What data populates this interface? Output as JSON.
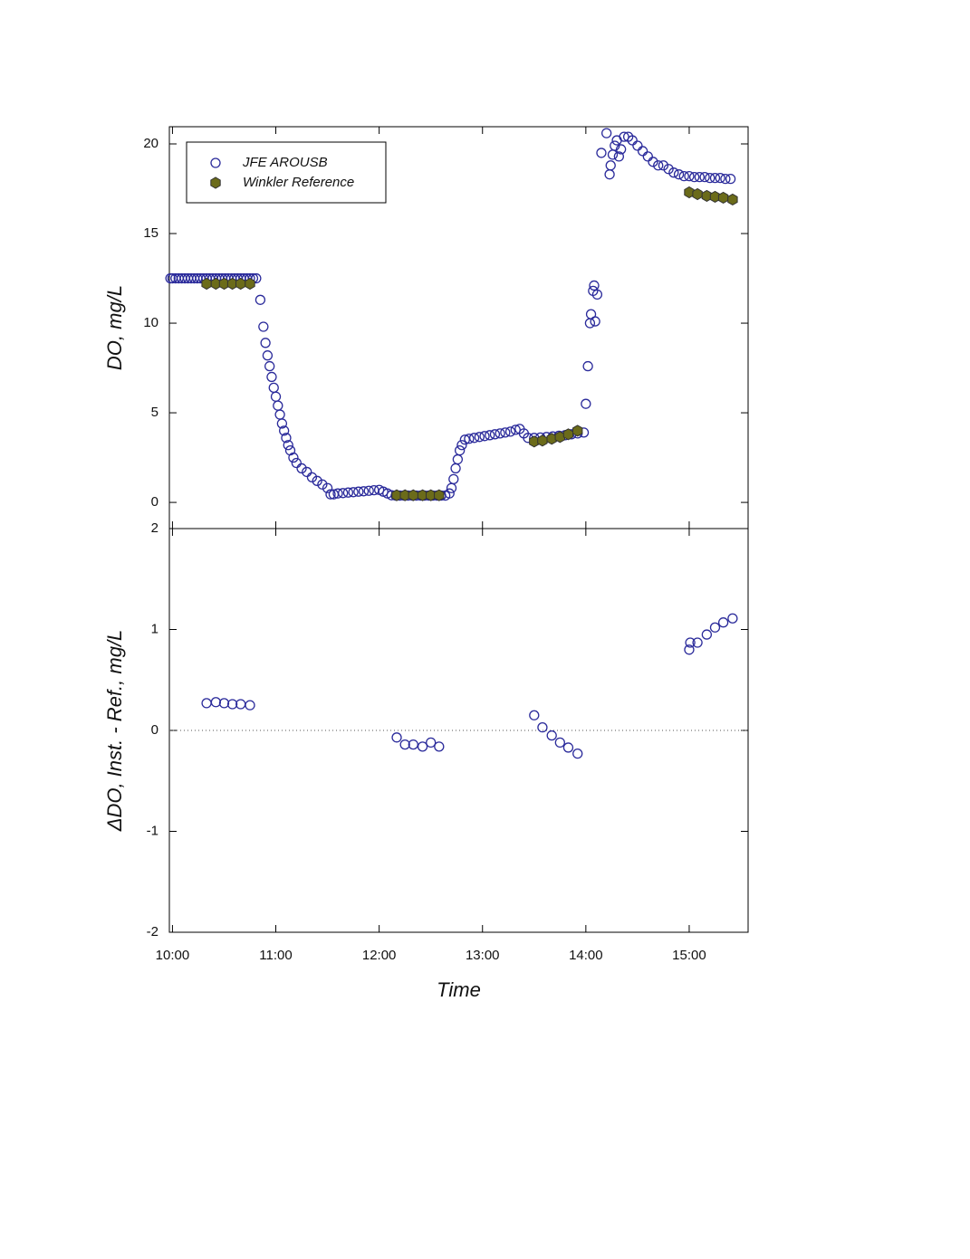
{
  "chart_data": [
    {
      "type": "scatter",
      "ylabel": "DO, mg/L",
      "legend": "upper left",
      "xlim": [
        9.97,
        15.57
      ],
      "xticks": [
        10,
        11,
        12,
        13,
        14,
        15
      ],
      "ylim": [
        -1.46,
        20.96
      ],
      "yticks": [
        0,
        5,
        10,
        15,
        20
      ],
      "series": [
        {
          "name": "JFE AROUSB",
          "color": "#2b2b9b",
          "marker": "circle",
          "x": [
            9.98,
            10.0,
            10.03,
            10.06,
            10.09,
            10.12,
            10.15,
            10.18,
            10.21,
            10.24,
            10.27,
            10.3,
            10.33,
            10.36,
            10.39,
            10.42,
            10.45,
            10.48,
            10.51,
            10.54,
            10.57,
            10.6,
            10.63,
            10.66,
            10.69,
            10.72,
            10.75,
            10.78,
            10.81,
            10.85,
            10.88,
            10.9,
            10.92,
            10.94,
            10.96,
            10.98,
            11.0,
            11.02,
            11.04,
            11.06,
            11.08,
            11.1,
            11.12,
            11.14,
            11.17,
            11.2,
            11.25,
            11.3,
            11.35,
            11.4,
            11.45,
            11.5,
            11.53,
            11.56,
            11.6,
            11.65,
            11.7,
            11.75,
            11.8,
            11.85,
            11.9,
            11.95,
            12.0,
            12.04,
            12.08,
            12.12,
            12.16,
            12.2,
            12.24,
            12.28,
            12.32,
            12.36,
            12.4,
            12.44,
            12.48,
            12.52,
            12.56,
            12.6,
            12.64,
            12.68,
            12.7,
            12.72,
            12.74,
            12.76,
            12.78,
            12.8,
            12.83,
            12.87,
            12.92,
            12.97,
            13.02,
            13.07,
            13.12,
            13.17,
            13.22,
            13.27,
            13.32,
            13.36,
            13.4,
            13.44,
            13.5,
            13.56,
            13.62,
            13.68,
            13.74,
            13.8,
            13.86,
            13.92,
            13.98,
            14.0,
            14.02,
            14.04,
            14.05,
            14.07,
            14.08,
            14.09,
            14.11,
            14.15,
            14.2,
            14.23,
            14.24,
            14.26,
            14.28,
            14.3,
            14.32,
            14.34,
            14.37,
            14.41,
            14.45,
            14.5,
            14.55,
            14.6,
            14.65,
            14.7,
            14.75,
            14.8,
            14.85,
            14.9,
            14.95,
            15.0,
            15.05,
            15.1,
            15.15,
            15.2,
            15.25,
            15.3,
            15.35,
            15.4
          ],
          "values": [
            12.5,
            12.5,
            12.5,
            12.5,
            12.5,
            12.5,
            12.5,
            12.5,
            12.5,
            12.5,
            12.5,
            12.5,
            12.5,
            12.5,
            12.5,
            12.5,
            12.5,
            12.5,
            12.5,
            12.5,
            12.5,
            12.5,
            12.5,
            12.5,
            12.5,
            12.5,
            12.5,
            12.5,
            12.5,
            11.3,
            9.8,
            8.9,
            8.2,
            7.6,
            7.0,
            6.4,
            5.9,
            5.4,
            4.9,
            4.4,
            4.0,
            3.6,
            3.2,
            2.9,
            2.5,
            2.2,
            1.9,
            1.7,
            1.4,
            1.2,
            1.0,
            0.8,
            0.45,
            0.45,
            0.5,
            0.52,
            0.55,
            0.57,
            0.6,
            0.62,
            0.65,
            0.68,
            0.7,
            0.6,
            0.5,
            0.4,
            0.38,
            0.38,
            0.38,
            0.38,
            0.38,
            0.38,
            0.38,
            0.38,
            0.38,
            0.38,
            0.38,
            0.38,
            0.38,
            0.5,
            0.8,
            1.3,
            1.9,
            2.4,
            2.9,
            3.2,
            3.5,
            3.55,
            3.6,
            3.65,
            3.7,
            3.75,
            3.8,
            3.85,
            3.9,
            3.95,
            4.05,
            4.1,
            3.85,
            3.6,
            3.6,
            3.62,
            3.65,
            3.68,
            3.72,
            3.75,
            3.8,
            3.85,
            3.9,
            5.5,
            7.6,
            10.0,
            10.5,
            11.8,
            12.1,
            10.1,
            11.6,
            19.5,
            20.6,
            18.3,
            18.8,
            19.4,
            19.9,
            20.2,
            19.3,
            19.7,
            20.4,
            20.4,
            20.2,
            19.9,
            19.6,
            19.3,
            19.0,
            18.8,
            18.8,
            18.6,
            18.4,
            18.3,
            18.2,
            18.2,
            18.15,
            18.15,
            18.15,
            18.1,
            18.1,
            18.1,
            18.05,
            18.05
          ]
        },
        {
          "name": "Winkler Reference",
          "color": "#6b6b1a",
          "marker": "hexagon",
          "x": [
            10.33,
            10.42,
            10.5,
            10.58,
            10.66,
            10.75,
            12.17,
            12.25,
            12.33,
            12.42,
            12.5,
            12.58,
            13.5,
            13.58,
            13.67,
            13.75,
            13.83,
            13.92,
            15.0,
            15.08,
            15.17,
            15.25,
            15.33,
            15.42
          ],
          "values": [
            12.2,
            12.2,
            12.2,
            12.2,
            12.2,
            12.2,
            0.4,
            0.4,
            0.4,
            0.4,
            0.4,
            0.4,
            3.4,
            3.45,
            3.55,
            3.65,
            3.8,
            4.0,
            17.3,
            17.2,
            17.1,
            17.05,
            17.0,
            16.9
          ]
        }
      ]
    },
    {
      "type": "scatter",
      "ylabel": "ΔDO, Inst. - Ref., mg/L",
      "xlabel": "Time",
      "reference_line": 0,
      "xlim": [
        9.97,
        15.57
      ],
      "xticks": [
        {
          "value": 10,
          "label": "10:00"
        },
        {
          "value": 11,
          "label": "11:00"
        },
        {
          "value": 12,
          "label": "12:00"
        },
        {
          "value": 13,
          "label": "13:00"
        },
        {
          "value": 14,
          "label": "14:00"
        },
        {
          "value": 15,
          "label": "15:00"
        }
      ],
      "ylim": [
        -2,
        2
      ],
      "yticks": [
        -2,
        -1,
        0,
        1,
        2
      ],
      "series": [
        {
          "name": "JFE AROUSB",
          "color": "#2b2b9b",
          "marker": "circle",
          "x": [
            10.33,
            10.42,
            10.5,
            10.58,
            10.66,
            10.75,
            12.17,
            12.25,
            12.33,
            12.42,
            12.5,
            12.58,
            13.5,
            13.58,
            13.67,
            13.75,
            13.83,
            13.92,
            15.0,
            15.01,
            15.08,
            15.17,
            15.25,
            15.33,
            15.42
          ],
          "values": [
            0.27,
            0.28,
            0.27,
            0.26,
            0.26,
            0.25,
            -0.07,
            -0.14,
            -0.14,
            -0.16,
            -0.12,
            -0.16,
            0.15,
            0.03,
            -0.05,
            -0.12,
            -0.17,
            -0.23,
            0.8,
            0.87,
            0.87,
            0.95,
            1.02,
            1.07,
            1.11
          ]
        }
      ]
    }
  ]
}
